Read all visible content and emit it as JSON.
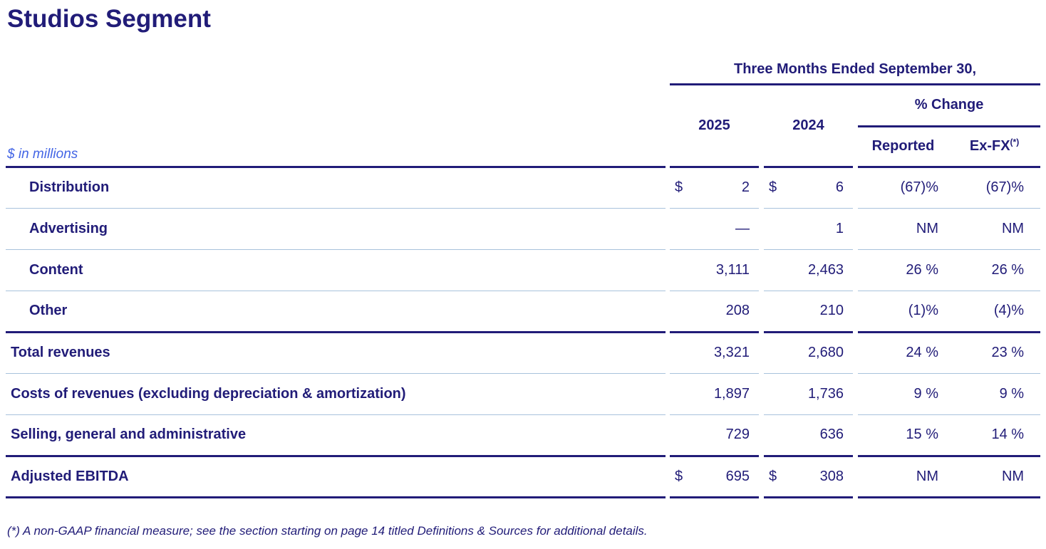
{
  "page": {
    "title": "Studios Segment",
    "footnote": "(*) A non-GAAP financial measure; see the section starting on page 14 titled Definitions & Sources for additional details."
  },
  "table": {
    "period_header": "Three Months Ended September 30,",
    "unit_label": "$ in millions",
    "col_2025": "2025",
    "col_2024": "2024",
    "pct_change_header": "% Change",
    "reported_header": "Reported",
    "exfx_header": "Ex-FX",
    "exfx_superscript": "(*)",
    "rows": [
      {
        "label": "Distribution",
        "cur25": "$",
        "v25": "2",
        "cur24": "$",
        "v24": "6",
        "rep": "(67)%",
        "exfx": "(67)%"
      },
      {
        "label": "Advertising",
        "cur25": "",
        "v25": "—",
        "cur24": "",
        "v24": "1",
        "rep": "NM",
        "exfx": "NM"
      },
      {
        "label": "Content",
        "cur25": "",
        "v25": "3,111",
        "cur24": "",
        "v24": "2,463",
        "rep": "26 %",
        "exfx": "26 %"
      },
      {
        "label": "Other",
        "cur25": "",
        "v25": "208",
        "cur24": "",
        "v24": "210",
        "rep": "(1)%",
        "exfx": "(4)%"
      },
      {
        "label": "Total revenues",
        "cur25": "",
        "v25": "3,321",
        "cur24": "",
        "v24": "2,680",
        "rep": "24 %",
        "exfx": "23 %"
      },
      {
        "label": "Costs of revenues (excluding depreciation & amortization)",
        "cur25": "",
        "v25": "1,897",
        "cur24": "",
        "v24": "1,736",
        "rep": "9 %",
        "exfx": "9 %"
      },
      {
        "label": "Selling, general and administrative",
        "cur25": "",
        "v25": "729",
        "cur24": "",
        "v24": "636",
        "rep": "15 %",
        "exfx": "14 %"
      },
      {
        "label": "Adjusted EBITDA",
        "cur25": "$",
        "v25": "695",
        "cur24": "$",
        "v24": "308",
        "rep": "NM",
        "exfx": "NM"
      }
    ],
    "colors": {
      "navy": "#211c78",
      "bright_blue": "#4365e5",
      "divider": "#a8c2dc"
    }
  }
}
